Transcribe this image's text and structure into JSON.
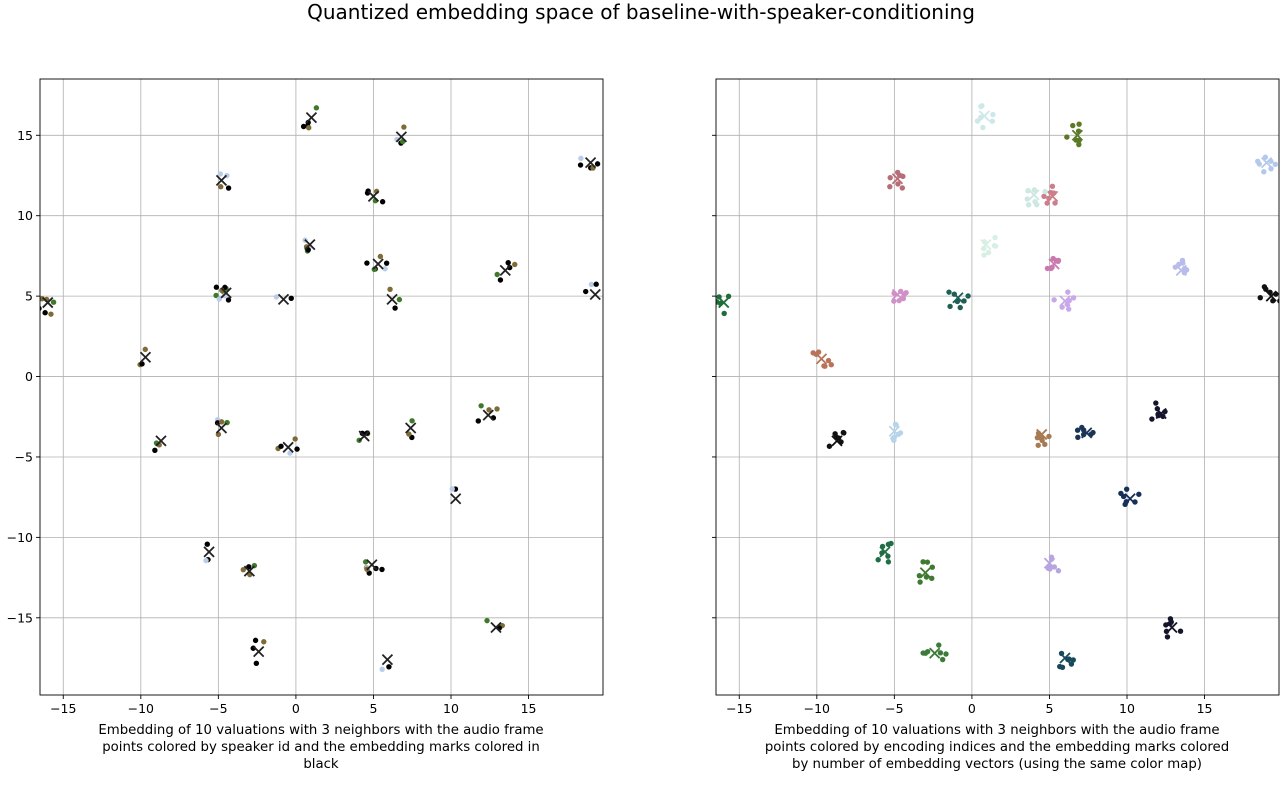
{
  "title": "Quantized embedding space of baseline-with-speaker-conditioning",
  "chart_data": [
    {
      "type": "scatter",
      "caption": "Embedding of 10 valuations with 3 neighbors with the audio frame points colored by speaker id and the embedding marks colored in black",
      "xlim": [
        -16.5,
        19.8
      ],
      "ylim": [
        -19.8,
        18.5
      ],
      "xticks": [
        -15,
        -10,
        -5,
        0,
        5,
        10,
        15
      ],
      "yticks": [
        -15,
        -10,
        -5,
        0,
        5,
        10,
        15
      ],
      "xtick_labels": [
        "−15",
        "−10",
        "−5",
        "0",
        "5",
        "10",
        "15"
      ],
      "ytick_labels": [
        "−15",
        "−10",
        "−5",
        "0",
        "5",
        "10",
        "15"
      ],
      "show_ytick_labels": true,
      "grid": true,
      "speaker_colors": [
        "#000000",
        "#7e6b35",
        "#3f7a2a",
        "#b9cdea"
      ],
      "marker_color": "#222222",
      "clusters": [
        {
          "x": 1.0,
          "y": 16.1,
          "colors": [
            0,
            0,
            0,
            2,
            1
          ]
        },
        {
          "x": 6.8,
          "y": 14.9,
          "colors": [
            0,
            2,
            3,
            1
          ]
        },
        {
          "x": -4.8,
          "y": 12.2,
          "colors": [
            0,
            3,
            1,
            3
          ]
        },
        {
          "x": 5.0,
          "y": 11.2,
          "colors": [
            0,
            0,
            2,
            1,
            0
          ]
        },
        {
          "x": 19.0,
          "y": 13.3,
          "colors": [
            0,
            0,
            3,
            1,
            0
          ]
        },
        {
          "x": 0.9,
          "y": 8.2,
          "colors": [
            3,
            1,
            2,
            0,
            3
          ]
        },
        {
          "x": -4.5,
          "y": 5.2,
          "colors": [
            0,
            1,
            2,
            3,
            0,
            1,
            0,
            2,
            3
          ]
        },
        {
          "x": -0.8,
          "y": 4.8,
          "colors": [
            0,
            3
          ]
        },
        {
          "x": 5.3,
          "y": 7.0,
          "colors": [
            0,
            0,
            1,
            3,
            0,
            2
          ]
        },
        {
          "x": 6.2,
          "y": 4.8,
          "colors": [
            0,
            1,
            2
          ]
        },
        {
          "x": 13.5,
          "y": 6.6,
          "colors": [
            0,
            0,
            2,
            1,
            0
          ]
        },
        {
          "x": 19.3,
          "y": 5.1,
          "colors": [
            0,
            3,
            0
          ]
        },
        {
          "x": -16.0,
          "y": 4.6,
          "colors": [
            1,
            2,
            0,
            1,
            0,
            1
          ]
        },
        {
          "x": -9.7,
          "y": 1.2,
          "colors": [
            1,
            1,
            0
          ]
        },
        {
          "x": -8.7,
          "y": -4.0,
          "colors": [
            0,
            1,
            2
          ]
        },
        {
          "x": -4.8,
          "y": -3.2,
          "colors": [
            1,
            3,
            0,
            1,
            2
          ]
        },
        {
          "x": -0.5,
          "y": -4.4,
          "colors": [
            0,
            1,
            3,
            0,
            1
          ]
        },
        {
          "x": 4.4,
          "y": -3.7,
          "colors": [
            0,
            2,
            1,
            0
          ]
        },
        {
          "x": 7.4,
          "y": -3.2,
          "colors": [
            0,
            1,
            2
          ]
        },
        {
          "x": 12.4,
          "y": -2.4,
          "colors": [
            0,
            1,
            2,
            1,
            0
          ]
        },
        {
          "x": 10.3,
          "y": -7.6,
          "colors": [
            0,
            3
          ]
        },
        {
          "x": -5.6,
          "y": -10.9,
          "colors": [
            0,
            0,
            3
          ]
        },
        {
          "x": -3.0,
          "y": -12.1,
          "colors": [
            0,
            1,
            2,
            1
          ]
        },
        {
          "x": 4.9,
          "y": -11.7,
          "colors": [
            0,
            1,
            2,
            3,
            0,
            1,
            0
          ]
        },
        {
          "x": 12.9,
          "y": -15.6,
          "colors": [
            1,
            2,
            0
          ]
        },
        {
          "x": -2.4,
          "y": -17.1,
          "colors": [
            0,
            1,
            0,
            0
          ]
        },
        {
          "x": 5.9,
          "y": -17.6,
          "colors": [
            0,
            3
          ]
        }
      ]
    },
    {
      "type": "scatter",
      "caption": "Embedding of 10 valuations with 3 neighbors with the audio frame points colored by encoding indices and the embedding marks colored by number of embedding vectors (using the same color map)",
      "xlim": [
        -16.5,
        19.8
      ],
      "ylim": [
        -19.8,
        18.5
      ],
      "xticks": [
        -15,
        -10,
        -5,
        0,
        5,
        10,
        15
      ],
      "yticks": [
        -15,
        -10,
        -5,
        0,
        5,
        10,
        15
      ],
      "xtick_labels": [
        "−15",
        "−10",
        "−5",
        "0",
        "5",
        "10",
        "15"
      ],
      "show_ytick_labels": false,
      "grid": true,
      "clusters": [
        {
          "x": 0.8,
          "y": 16.2,
          "color": "#cce8ea"
        },
        {
          "x": 6.8,
          "y": 15.0,
          "color": "#5a7a25"
        },
        {
          "x": -4.8,
          "y": 12.3,
          "color": "#b86e78"
        },
        {
          "x": 5.2,
          "y": 11.2,
          "color": "#cc7e8a"
        },
        {
          "x": 4.0,
          "y": 11.3,
          "color": "#cce8e0"
        },
        {
          "x": 19.0,
          "y": 13.3,
          "color": "#b4c8ec"
        },
        {
          "x": 0.9,
          "y": 8.2,
          "color": "#d8efe6"
        },
        {
          "x": -4.8,
          "y": 5.1,
          "color": "#d090c8"
        },
        {
          "x": -0.9,
          "y": 4.9,
          "color": "#1f5f55"
        },
        {
          "x": 5.3,
          "y": 7.0,
          "color": "#cc78b0"
        },
        {
          "x": 6.0,
          "y": 4.7,
          "color": "#c8a8e8"
        },
        {
          "x": 13.5,
          "y": 6.6,
          "color": "#b8bcec"
        },
        {
          "x": 19.3,
          "y": 5.0,
          "color": "#111111"
        },
        {
          "x": -16.0,
          "y": 4.6,
          "color": "#1f6e3a"
        },
        {
          "x": -9.7,
          "y": 1.1,
          "color": "#b8745a"
        },
        {
          "x": -8.7,
          "y": -4.0,
          "color": "#111111"
        },
        {
          "x": -5.0,
          "y": -3.4,
          "color": "#b8d4ea"
        },
        {
          "x": 4.5,
          "y": -3.6,
          "color": "#a87a52"
        },
        {
          "x": 7.4,
          "y": -3.5,
          "color": "#1a3556"
        },
        {
          "x": 12.2,
          "y": -2.3,
          "color": "#16142e"
        },
        {
          "x": 10.2,
          "y": -7.6,
          "color": "#16305a"
        },
        {
          "x": -5.6,
          "y": -10.9,
          "color": "#1f6e45"
        },
        {
          "x": -3.0,
          "y": -12.2,
          "color": "#3f7a30"
        },
        {
          "x": 5.0,
          "y": -11.6,
          "color": "#b8a4e0"
        },
        {
          "x": 12.9,
          "y": -15.6,
          "color": "#14142a"
        },
        {
          "x": -2.4,
          "y": -17.2,
          "color": "#3c7a3a"
        },
        {
          "x": 6.0,
          "y": -17.5,
          "color": "#174a5a"
        }
      ]
    }
  ]
}
